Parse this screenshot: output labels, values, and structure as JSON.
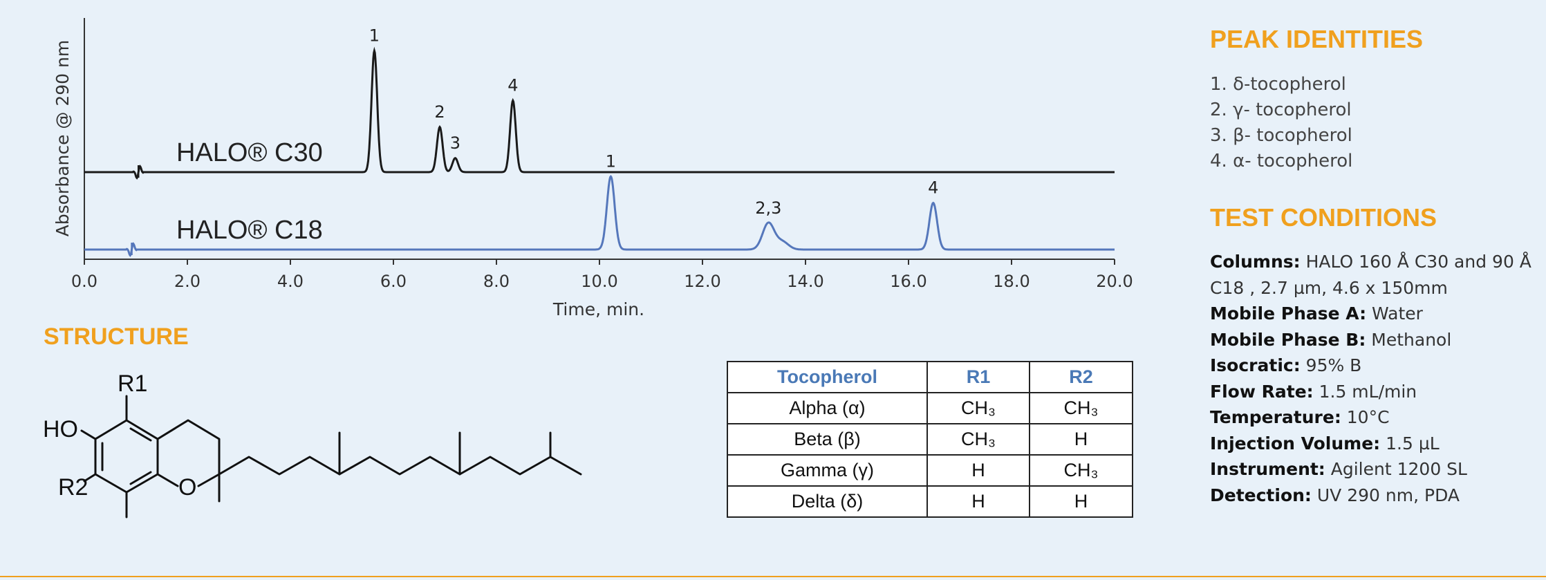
{
  "chart_data": {
    "type": "line",
    "ylabel": "Absorbance @ 290 nm",
    "xlabel": "Time, min.",
    "xlim": [
      0,
      20
    ],
    "x_ticks": [
      "0.0",
      "2.0",
      "4.0",
      "6.0",
      "8.0",
      "10.0",
      "12.0",
      "14.0",
      "16.0",
      "18.0",
      "20.0"
    ],
    "series": [
      {
        "name": "HALO® C30",
        "color": "#1a1a1a",
        "injection_time": 1.05,
        "peaks": [
          {
            "label": "1",
            "time": 5.63,
            "height": 0.78
          },
          {
            "label": "2",
            "time": 6.9,
            "height": 0.29
          },
          {
            "label": "3",
            "time": 7.2,
            "height": 0.09
          },
          {
            "label": "4",
            "time": 8.32,
            "height": 0.46
          }
        ]
      },
      {
        "name": "HALO® C18",
        "color": "#5577bb",
        "injection_time": 0.92,
        "peaks": [
          {
            "label": "1",
            "time": 10.22,
            "height": 0.47
          },
          {
            "label": "2,3",
            "time": 13.28,
            "height": 0.17
          },
          {
            "label": "4",
            "time": 16.48,
            "height": 0.3
          }
        ]
      }
    ]
  },
  "peak_identities": {
    "heading": "PEAK IDENTITIES",
    "items": [
      "1. δ-tocopherol",
      "2. γ- tocopherol",
      "3. β- tocopherol",
      "4. α- tocopherol"
    ]
  },
  "test_conditions": {
    "heading": "TEST CONDITIONS",
    "items": [
      {
        "label": "Columns:",
        "value": " HALO 160 Å C30 and 90 Å C18 , 2.7 µm, 4.6 x 150mm"
      },
      {
        "label": "Mobile Phase A:",
        "value": " Water"
      },
      {
        "label": "Mobile Phase B:",
        "value": " Methanol"
      },
      {
        "label": "Isocratic:",
        "value": " 95% B"
      },
      {
        "label": "Flow Rate:",
        "value": " 1.5 mL/min"
      },
      {
        "label": "Temperature:",
        "value": " 10°C"
      },
      {
        "label": "Injection Volume:",
        "value": " 1.5 µL"
      },
      {
        "label": "Instrument:",
        "value": " Agilent 1200 SL"
      },
      {
        "label": "Detection:",
        "value": " UV 290 nm, PDA"
      }
    ]
  },
  "structure": {
    "heading": "STRUCTURE",
    "atoms": {
      "r1": "R1",
      "r2": "R2",
      "ho": "HO",
      "o": "O"
    }
  },
  "substituent_table": {
    "headers": [
      "Tocopherol",
      "R1",
      "R2"
    ],
    "rows": [
      [
        "Alpha (α)",
        "CH₃",
        "CH₃"
      ],
      [
        "Beta (β)",
        "CH₃",
        "H"
      ],
      [
        "Gamma (γ)",
        "H",
        "CH₃"
      ],
      [
        "Delta (δ)",
        "H",
        "H"
      ]
    ]
  },
  "colors": {
    "accent": "#f0a01e",
    "table_header": "#4a79b6",
    "background": "#e8f1f9"
  }
}
